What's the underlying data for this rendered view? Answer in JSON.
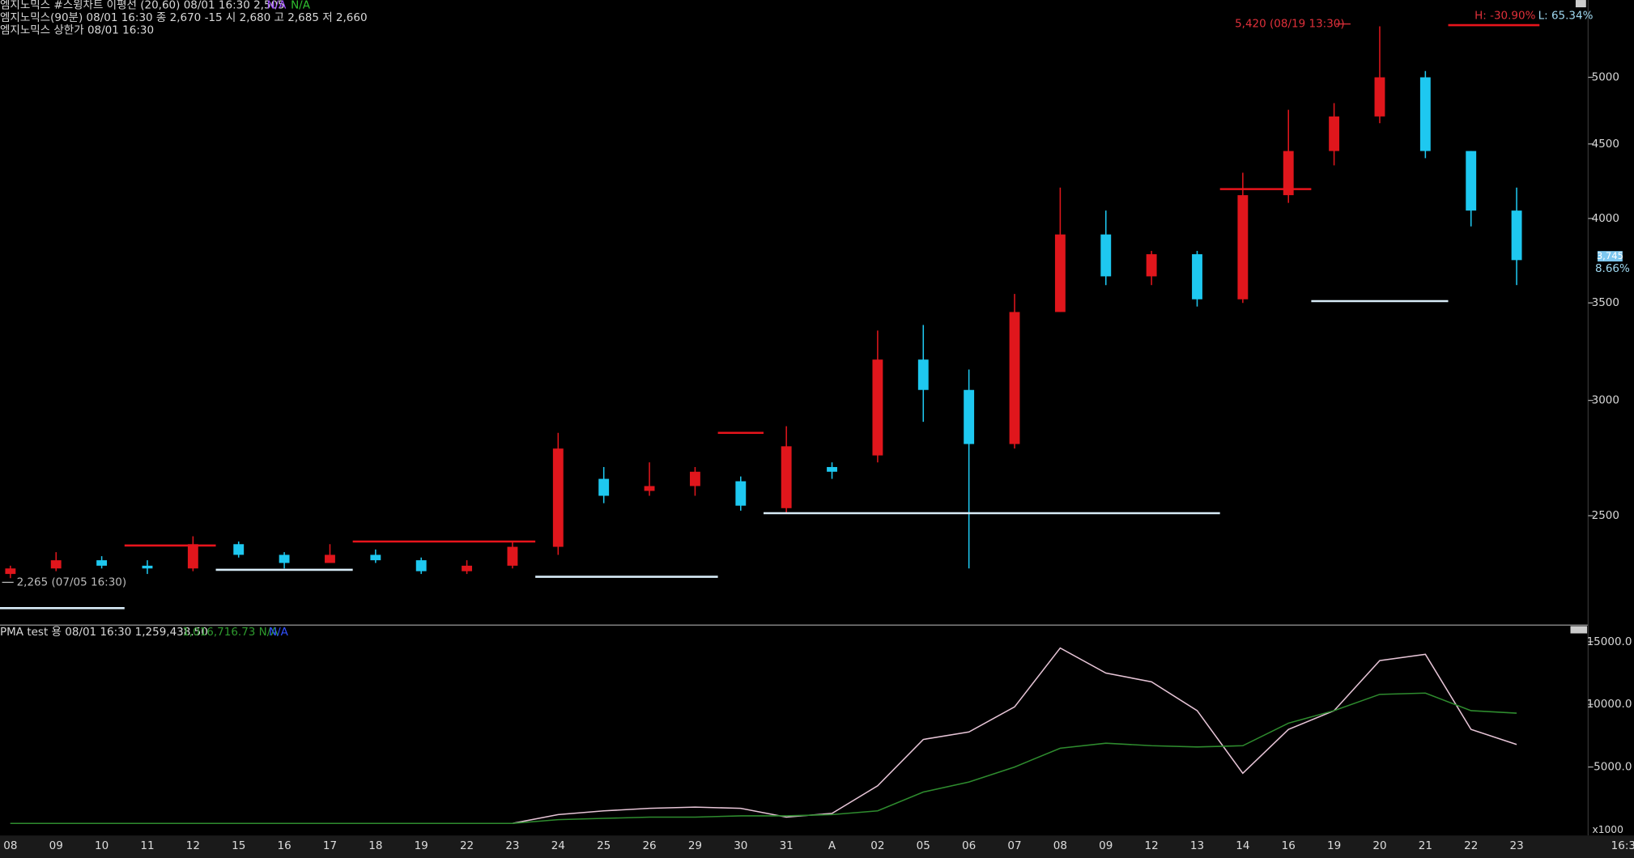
{
  "chart_data": [
    {
      "type": "candlestick",
      "header": [
        "엠지노믹스 #스윙차트 이평선 (20,60) 08/01 16:30 2,505",
        "N/A",
        "N/A"
      ],
      "subheader": [
        "엠지노믹스(90분) 08/01 16:30  종 2,670 -15  시 2,680 고 2,685 저 2,660",
        "엠지노믹스 상한가 08/01 16:30"
      ],
      "categories": [
        "08",
        "09",
        "10",
        "11",
        "12",
        "15",
        "16",
        "17",
        "18",
        "19",
        "22",
        "23",
        "24",
        "25",
        "26",
        "29",
        "30",
        "31",
        "A",
        "02",
        "05",
        "06",
        "07",
        "08",
        "09",
        "12",
        "13",
        "14",
        "16",
        "19",
        "20",
        "21",
        "22",
        "23"
      ],
      "open": [
        2280,
        2300,
        2330,
        2310,
        2300,
        2390,
        2350,
        2320,
        2350,
        2330,
        2290,
        2310,
        2380,
        2650,
        2600,
        2620,
        2640,
        2530,
        2700,
        2750,
        3200,
        3050,
        2800,
        3450,
        3900,
        3650,
        3780,
        3520,
        4150,
        4450,
        4700,
        5000,
        4450,
        4050
      ],
      "high": [
        2310,
        2360,
        2345,
        2330,
        2420,
        2400,
        2360,
        2390,
        2370,
        2340,
        2330,
        2400,
        2850,
        2700,
        2720,
        2700,
        2660,
        2880,
        2720,
        3350,
        3380,
        3150,
        3550,
        4200,
        4050,
        3800,
        3800,
        4300,
        4750,
        4800,
        5420,
        5050,
        4450,
        4200
      ],
      "low": [
        2265,
        2290,
        2300,
        2280,
        2290,
        2340,
        2300,
        2320,
        2320,
        2280,
        2280,
        2300,
        2350,
        2550,
        2580,
        2580,
        2520,
        2510,
        2650,
        2720,
        2900,
        2300,
        2780,
        3450,
        3600,
        3600,
        3480,
        3500,
        4100,
        4350,
        4650,
        4400,
        3950,
        3600
      ],
      "close": [
        2300,
        2330,
        2310,
        2300,
        2390,
        2350,
        2320,
        2350,
        2330,
        2290,
        2310,
        2380,
        2780,
        2580,
        2620,
        2680,
        2540,
        2790,
        2680,
        3200,
        3050,
        2800,
        3450,
        3900,
        3650,
        3780,
        3520,
        4150,
        4450,
        4700,
        5000,
        4450,
        4050,
        3745
      ],
      "up_color": "#e0161c",
      "down_color": "#1ec8f0",
      "series": [
        {
          "color": "#e8141c",
          "values": [
            null,
            null,
            null,
            2385,
            2385,
            null,
            null,
            null,
            2400,
            2400,
            2400,
            2400,
            null,
            null,
            null,
            null,
            2850,
            null,
            null,
            null,
            null,
            null,
            null,
            null,
            null,
            null,
            null,
            4190,
            4190,
            null,
            null,
            null,
            5430,
            5430
          ]
        },
        {
          "color": "#d8ecf8",
          "values": [
            2160,
            2160,
            2160,
            null,
            null,
            2295,
            2295,
            2295,
            null,
            null,
            null,
            null,
            2270,
            2270,
            2270,
            2270,
            null,
            2510,
            2510,
            2510,
            2510,
            2510,
            2510,
            2510,
            2510,
            2510,
            2510,
            null,
            null,
            3510,
            3510,
            3510,
            null,
            null
          ]
        }
      ],
      "annotations": [
        "5,420 (08/19 13:30)",
        "2,265 (07/05 16:30)",
        "H: -30.90%",
        "L: 65.34%",
        "3,745",
        "8.66%"
      ],
      "log_scale": true,
      "ylim": [
        2110,
        5650
      ],
      "yticks": [
        2500,
        3000,
        3500,
        4000,
        4500,
        5000
      ]
    },
    {
      "type": "line",
      "header": [
        "PMA test 용  08/01 16:30 1,259,438.50",
        "1,016,716.73 N/A",
        "N/A"
      ],
      "series": [
        {
          "color": "#e6c4d6",
          "values": [
            500,
            500,
            500,
            500,
            500,
            500,
            500,
            500,
            500,
            500,
            500,
            500,
            1200,
            1500,
            1700,
            1800,
            1700,
            1000,
            1300,
            3500,
            7200,
            7800,
            9800,
            14500,
            12500,
            11800,
            9500,
            4500,
            8000,
            9500,
            13500,
            14000,
            8000,
            6800
          ]
        },
        {
          "color": "#2e8b2e",
          "values": [
            500,
            500,
            500,
            500,
            500,
            500,
            500,
            500,
            500,
            500,
            500,
            500,
            800,
            900,
            1000,
            1000,
            1100,
            1100,
            1200,
            1500,
            3000,
            3800,
            5000,
            6500,
            6900,
            6700,
            6600,
            6700,
            8500,
            9500,
            10800,
            10900,
            9500,
            9300
          ]
        }
      ],
      "scale_note": "x1000",
      "time_label": "16:30",
      "ylim": [
        -300,
        16000
      ],
      "yticks": [
        {
          "value": 5000,
          "label": "5000.0"
        },
        {
          "value": 10000,
          "label": "10000.0"
        },
        {
          "value": 15000,
          "label": "15000.0"
        }
      ]
    }
  ]
}
